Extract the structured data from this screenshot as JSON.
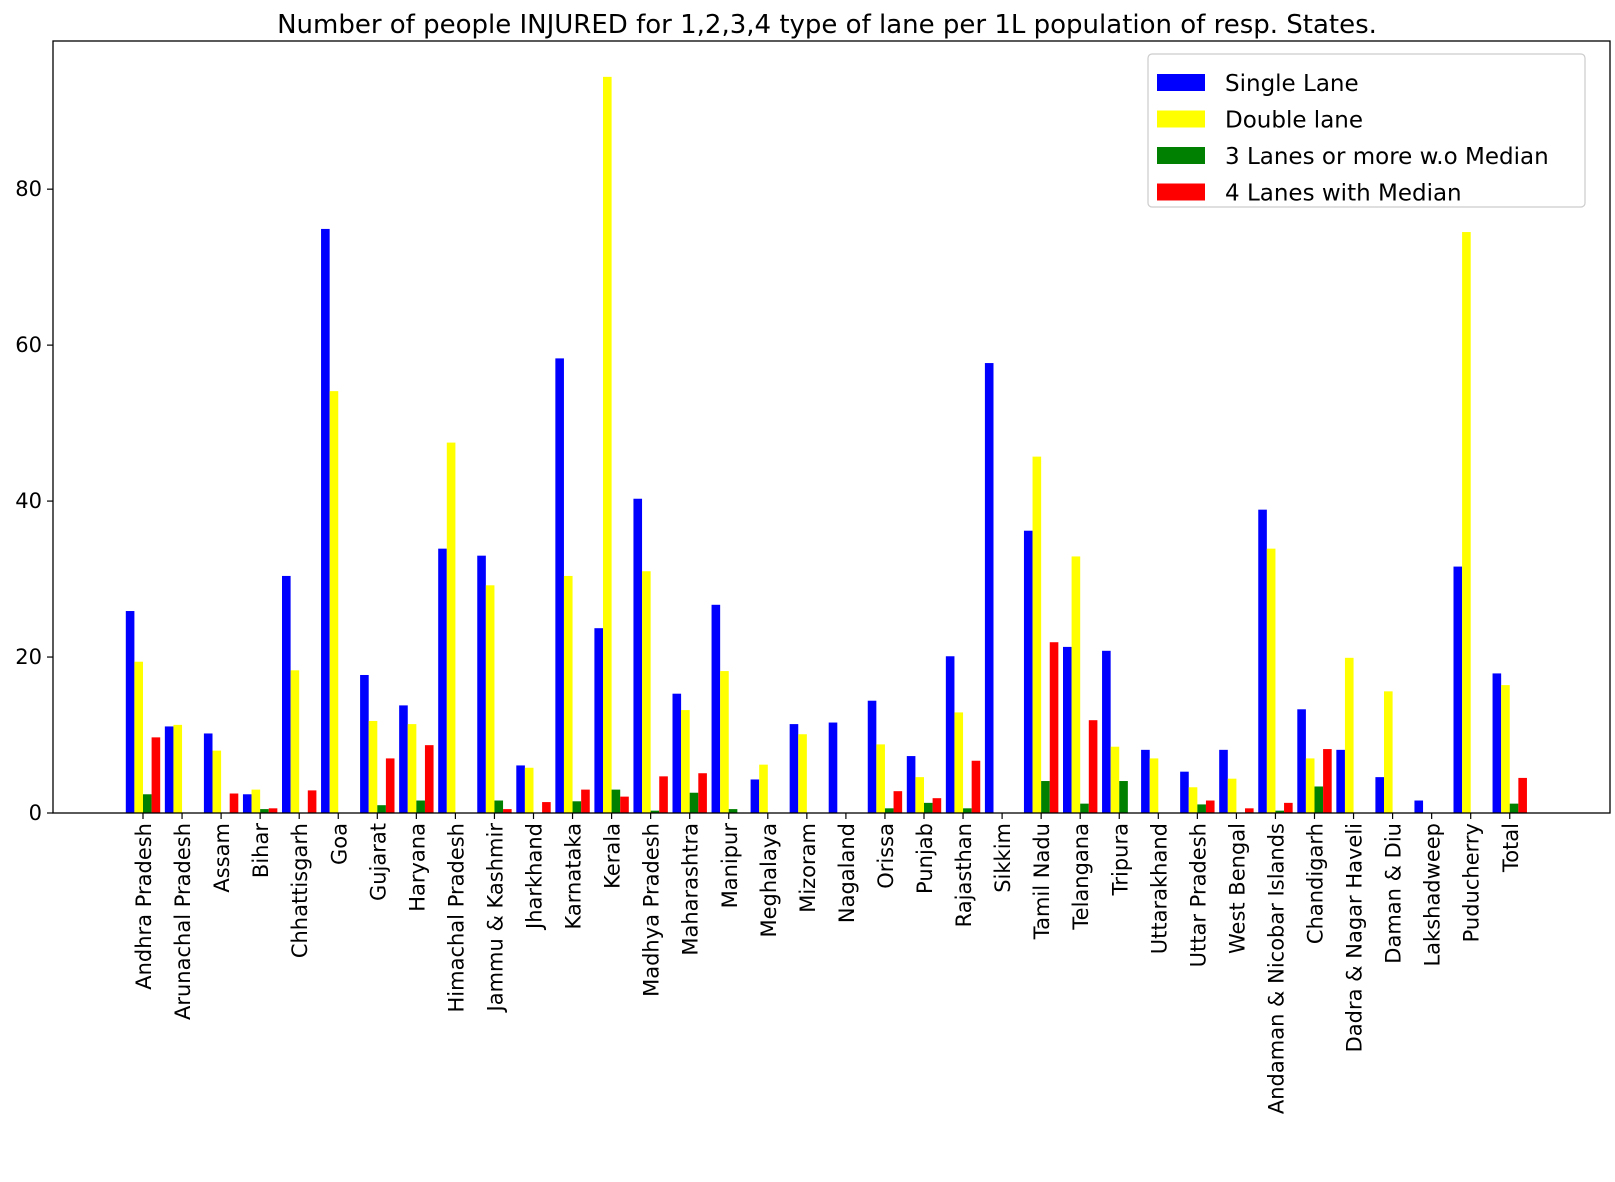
{
  "chart_data": {
    "type": "bar",
    "title": "Number of people INJURED for 1,2,3,4 type of lane per 1L population of resp. States.",
    "xlabel": "",
    "ylabel": "",
    "ylim": [
      0,
      99
    ],
    "yticks": [
      0,
      20,
      40,
      60,
      80
    ],
    "grid": false,
    "legend_position": "top-right",
    "categories": [
      "Andhra Pradesh",
      "Arunachal Pradesh",
      "Assam",
      "Bihar",
      "Chhattisgarh",
      "Goa",
      "Gujarat",
      "Haryana",
      "Himachal Pradesh",
      "Jammu & Kashmir",
      "Jharkhand",
      "Karnataka",
      "Kerala",
      "Madhya Pradesh",
      "Maharashtra",
      "Manipur",
      "Meghalaya",
      "Mizoram",
      "Nagaland",
      "Orissa",
      "Punjab",
      "Rajasthan",
      "Sikkim",
      "Tamil Nadu",
      "Telangana",
      "Tripura",
      "Uttarakhand",
      "Uttar Pradesh",
      "West Bengal",
      "Andaman & Nicobar Islands",
      "Chandigarh",
      "Dadra & Nagar Haveli",
      "Daman & Diu",
      "Lakshadweep",
      "Puducherry",
      "Total"
    ],
    "series": [
      {
        "name": "Single Lane",
        "color": "#0000ff",
        "values": [
          25.9,
          11.1,
          10.2,
          2.4,
          30.4,
          74.9,
          17.7,
          13.8,
          33.9,
          33.0,
          6.1,
          58.3,
          23.7,
          40.3,
          15.3,
          26.7,
          4.3,
          11.4,
          11.6,
          14.4,
          7.3,
          20.1,
          57.7,
          36.2,
          21.3,
          20.8,
          8.1,
          5.3,
          8.1,
          38.9,
          13.3,
          8.1,
          4.6,
          1.6,
          31.6,
          17.9
        ]
      },
      {
        "name": "Double lane",
        "color": "#ffff00",
        "values": [
          19.4,
          11.3,
          8.0,
          3.0,
          18.3,
          54.1,
          11.8,
          11.4,
          47.5,
          29.2,
          5.8,
          30.4,
          94.4,
          31.0,
          13.2,
          18.2,
          6.2,
          10.1,
          0.0,
          8.8,
          4.6,
          12.9,
          0.0,
          45.7,
          32.9,
          8.5,
          7.0,
          3.3,
          4.4,
          33.9,
          7.0,
          19.9,
          15.6,
          0.0,
          74.5,
          16.4
        ]
      },
      {
        "name": "3 Lanes or more w.o Median",
        "color": "#008000",
        "values": [
          2.4,
          0.0,
          0.0,
          0.5,
          0.0,
          0.0,
          1.0,
          1.6,
          0.0,
          1.6,
          0.0,
          1.5,
          3.0,
          0.3,
          2.6,
          0.5,
          0.0,
          0.0,
          0.0,
          0.6,
          1.3,
          0.6,
          0.0,
          4.1,
          1.2,
          4.1,
          0.0,
          1.1,
          0.0,
          0.3,
          3.4,
          0.0,
          0.0,
          0.0,
          0.0,
          1.2
        ]
      },
      {
        "name": "4 Lanes with Median",
        "color": "#ff0000",
        "values": [
          9.7,
          0.0,
          2.5,
          0.6,
          2.9,
          0.0,
          7.0,
          8.7,
          0.0,
          0.5,
          1.4,
          3.0,
          2.1,
          4.7,
          5.1,
          0.0,
          0.0,
          0.0,
          0.0,
          2.8,
          1.9,
          6.7,
          0.0,
          21.9,
          11.9,
          0.0,
          0.0,
          1.6,
          0.6,
          1.3,
          8.2,
          0.0,
          0.0,
          0.0,
          0.0,
          4.5
        ]
      }
    ]
  }
}
